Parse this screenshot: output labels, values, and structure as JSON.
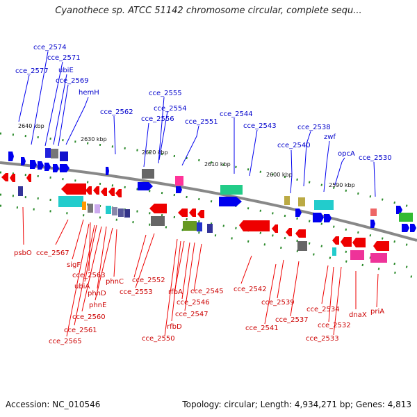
{
  "title": "Cyanothece sp. ATCC 51142 chromosome circular, complete sequ...",
  "footer": {
    "accession": "Accession: NC_010546",
    "summary": "Topology: circular; Length: 4,934,271 bp; Genes: 4,813"
  },
  "scale_labels": [
    "2640 kbp",
    "2630 kbp",
    "2620 kbp",
    "2610 kbp",
    "2600 kbp",
    "2590 kbp"
  ],
  "colors": {
    "forward": "#0000dd",
    "reverse": "#dd0000",
    "backbone": "#888888",
    "tick": "#228822"
  },
  "forward_genes": [
    "cce_2574",
    "cce_2571",
    "cce_2577",
    "ubiE",
    "cce_2569",
    "hemH",
    "cce_2555",
    "cce_2562",
    "cce_2554",
    "cce_2556",
    "cce_2551",
    "cce_2544",
    "cce_2543",
    "cce_2538",
    "zwf",
    "cce_2540",
    "opcA",
    "cce_2530"
  ],
  "reverse_genes": [
    "psbO",
    "cce_2567",
    "sigF",
    "cce_2563",
    "ubiA",
    "phnD",
    "phnC",
    "phnE",
    "cce_2560",
    "cce_2561",
    "cce_2565",
    "cce_2552",
    "cce_2553",
    "rfbA",
    "cce_2546",
    "cce_2545",
    "cce_2547",
    "rfbD",
    "cce_2550",
    "cce_2542",
    "cce_2539",
    "cce_2541",
    "cce_2537",
    "cce_2534",
    "cce_2532",
    "cce_2533",
    "dnaX",
    "priA"
  ]
}
